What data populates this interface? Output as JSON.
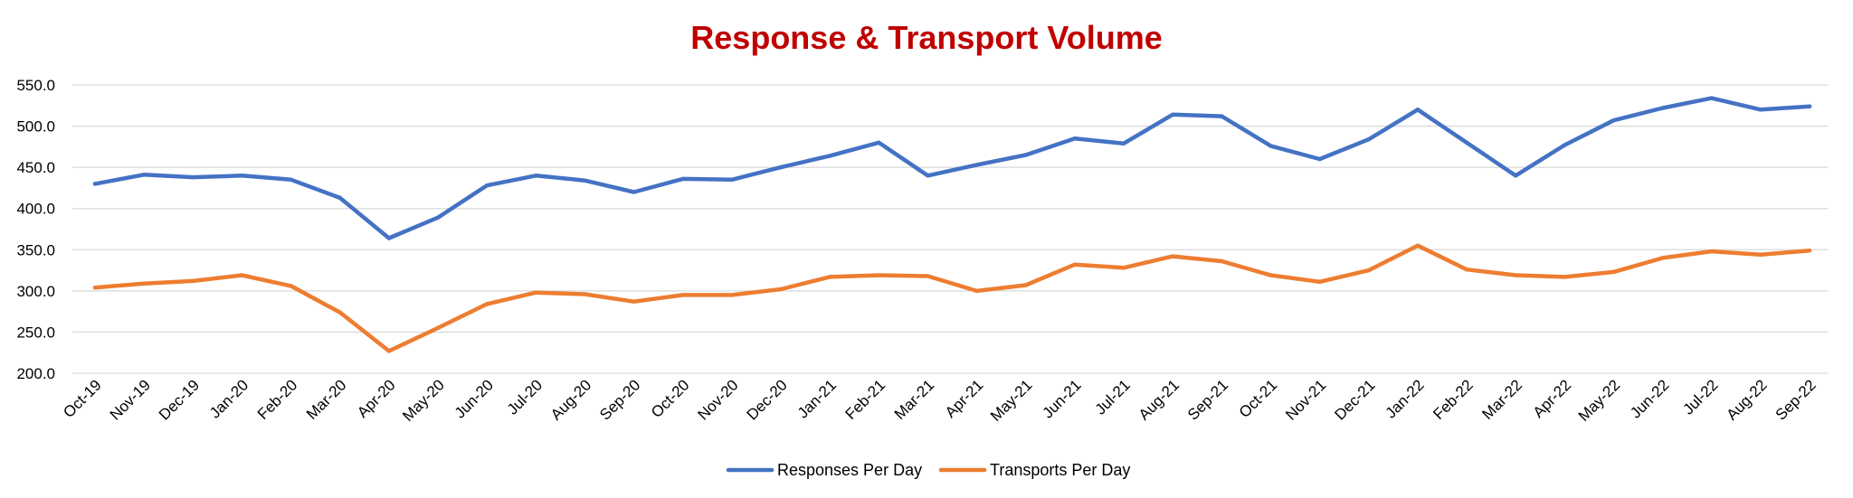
{
  "chart_data": {
    "type": "line",
    "title": "Response & Transport Volume",
    "xlabel": "",
    "ylabel": "",
    "ylim": [
      200,
      550
    ],
    "yticks": [
      "200.0",
      "250.0",
      "300.0",
      "350.0",
      "400.0",
      "450.0",
      "500.0",
      "550.0"
    ],
    "grid": true,
    "legend_position": "bottom",
    "categories": [
      "Oct-19",
      "Nov-19",
      "Dec-19",
      "Jan-20",
      "Feb-20",
      "Mar-20",
      "Apr-20",
      "May-20",
      "Jun-20",
      "Jul-20",
      "Aug-20",
      "Sep-20",
      "Oct-20",
      "Nov-20",
      "Dec-20",
      "Jan-21",
      "Feb-21",
      "Mar-21",
      "Apr-21",
      "May-21",
      "Jun-21",
      "Jul-21",
      "Aug-21",
      "Sep-21",
      "Oct-21",
      "Nov-21",
      "Dec-21",
      "Jan-22",
      "Feb-22",
      "Mar-22",
      "Apr-22",
      "May-22",
      "Jun-22",
      "Jul-22",
      "Aug-22",
      "Sep-22"
    ],
    "series": [
      {
        "name": "Responses Per Day",
        "color": "#4472C4",
        "values": [
          430,
          441,
          438,
          440,
          435,
          413,
          364,
          389,
          428,
          440,
          434,
          420,
          436,
          435,
          450,
          464,
          480,
          440,
          453,
          465,
          485,
          479,
          514,
          512,
          476,
          460,
          484,
          520,
          480,
          440,
          477,
          507,
          522,
          534,
          520,
          524
        ]
      },
      {
        "name": "Transports Per Day",
        "color": "#ED7D31",
        "values": [
          304,
          309,
          312,
          319,
          306,
          274,
          227,
          255,
          284,
          298,
          296,
          287,
          295,
          295,
          302,
          317,
          319,
          318,
          300,
          307,
          332,
          328,
          342,
          336,
          319,
          311,
          325,
          355,
          326,
          319,
          317,
          323,
          340,
          348,
          344,
          349
        ]
      }
    ]
  },
  "colors": {
    "title": "#C00000",
    "grid": "#D9D9D9"
  }
}
